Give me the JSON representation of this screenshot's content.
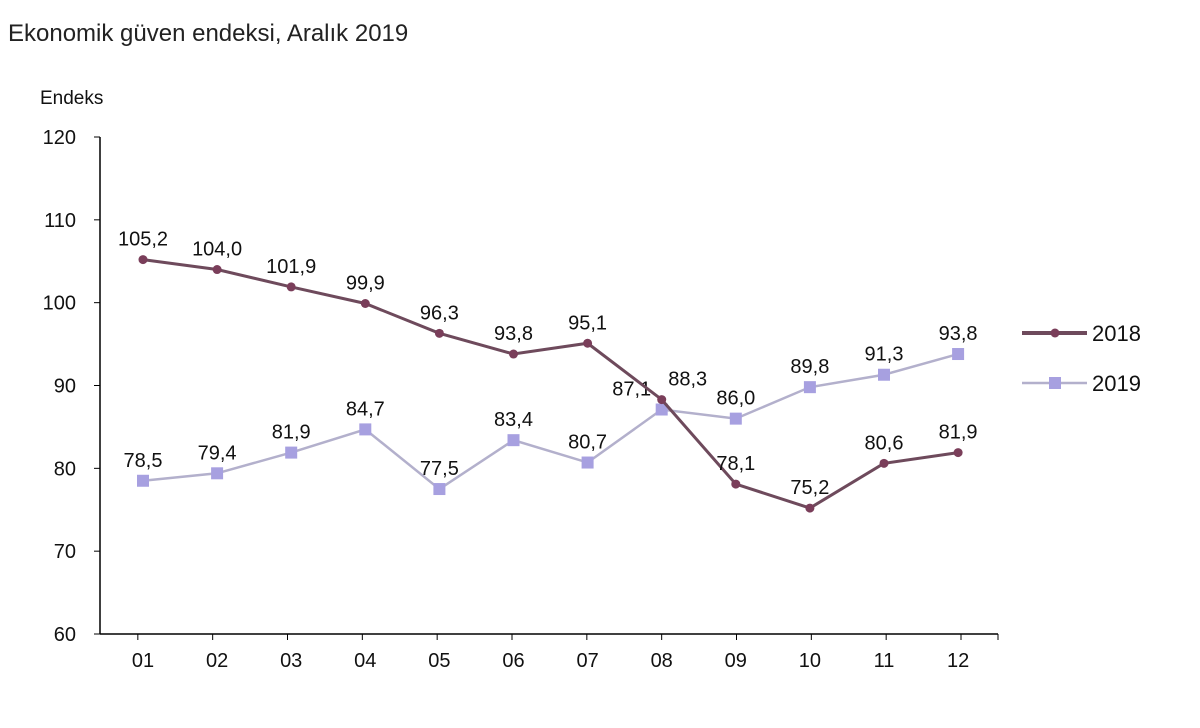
{
  "chart_data": {
    "type": "line",
    "title": "Ekonomik güven endeksi, Aralık 2019",
    "ylabel": "Endeks",
    "xlabel": "",
    "categories": [
      "01",
      "02",
      "03",
      "04",
      "05",
      "06",
      "07",
      "08",
      "09",
      "10",
      "11",
      "12"
    ],
    "ylim": [
      60,
      120
    ],
    "yticks": [
      60,
      70,
      80,
      90,
      100,
      110,
      120
    ],
    "grid": false,
    "legend": "right",
    "series": [
      {
        "name": "2018",
        "color": "#7a3e5a",
        "line_color": "#6e4a5c",
        "values": [
          105.2,
          104.0,
          101.9,
          99.9,
          96.3,
          93.8,
          95.1,
          88.3,
          78.1,
          75.2,
          80.6,
          81.9
        ],
        "labels": [
          "105,2",
          "104,0",
          "101,9",
          "99,9",
          "96,3",
          "93,8",
          "95,1",
          "88,3",
          "78,1",
          "75,2",
          "80,6",
          "81,9"
        ]
      },
      {
        "name": "2019",
        "color": "#a7a0e0",
        "line_color": "#b3b0cc",
        "values": [
          78.5,
          79.4,
          81.9,
          84.7,
          77.5,
          83.4,
          80.7,
          87.1,
          86.0,
          89.8,
          91.3,
          93.8
        ],
        "labels": [
          "78,5",
          "79,4",
          "81,9",
          "84,7",
          "77,5",
          "83,4",
          "80,7",
          "87,1",
          "86,0",
          "89,8",
          "91,3",
          "93,8"
        ]
      }
    ]
  }
}
